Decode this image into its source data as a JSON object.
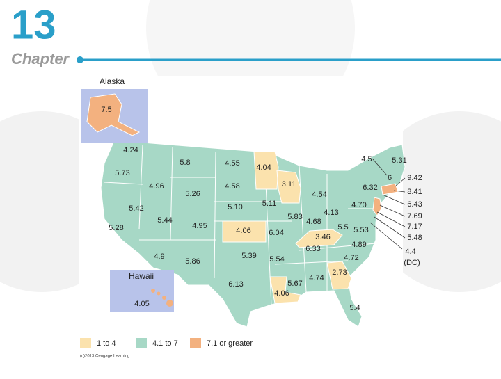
{
  "header": {
    "number": "13",
    "label": "Chapter"
  },
  "map": {
    "insets": [
      {
        "title": "Alaska",
        "value": "7.5"
      },
      {
        "title": "Hawaii",
        "value": "4.05"
      }
    ],
    "labels": [
      "4.24",
      "5.73",
      "5.8",
      "4.55",
      "4.04",
      "3.11",
      "4.96",
      "5.26",
      "4.58",
      "5.42",
      "5.10",
      "5.11",
      "4.54",
      "6.32",
      "5.28",
      "5.44",
      "4.95",
      "4.06",
      "6.04",
      "5.83",
      "4.68",
      "4.13",
      "4.70",
      "5.5",
      "5.53",
      "3.46",
      "6.33",
      "4.89",
      "4.72",
      "4.9",
      "5.86",
      "5.39",
      "5.54",
      "2.73",
      "4.74",
      "5.67",
      "4.06",
      "6.13",
      "5.4"
    ],
    "callouts": [
      "4.5",
      "5.31",
      "6",
      "9.42",
      "8.41",
      "6.43",
      "7.69",
      "7.17",
      "5.48"
    ],
    "dc": {
      "value": "4.4",
      "note": "(DC)"
    },
    "legend": [
      {
        "label": "1 to 4",
        "color": "#fbe2ad"
      },
      {
        "label": "4.1 to 7",
        "color": "#a7d8c6"
      },
      {
        "label": "7.1 or greater",
        "color": "#f3b17f"
      }
    ],
    "credit": "(c)2013 Cengage Learning"
  }
}
